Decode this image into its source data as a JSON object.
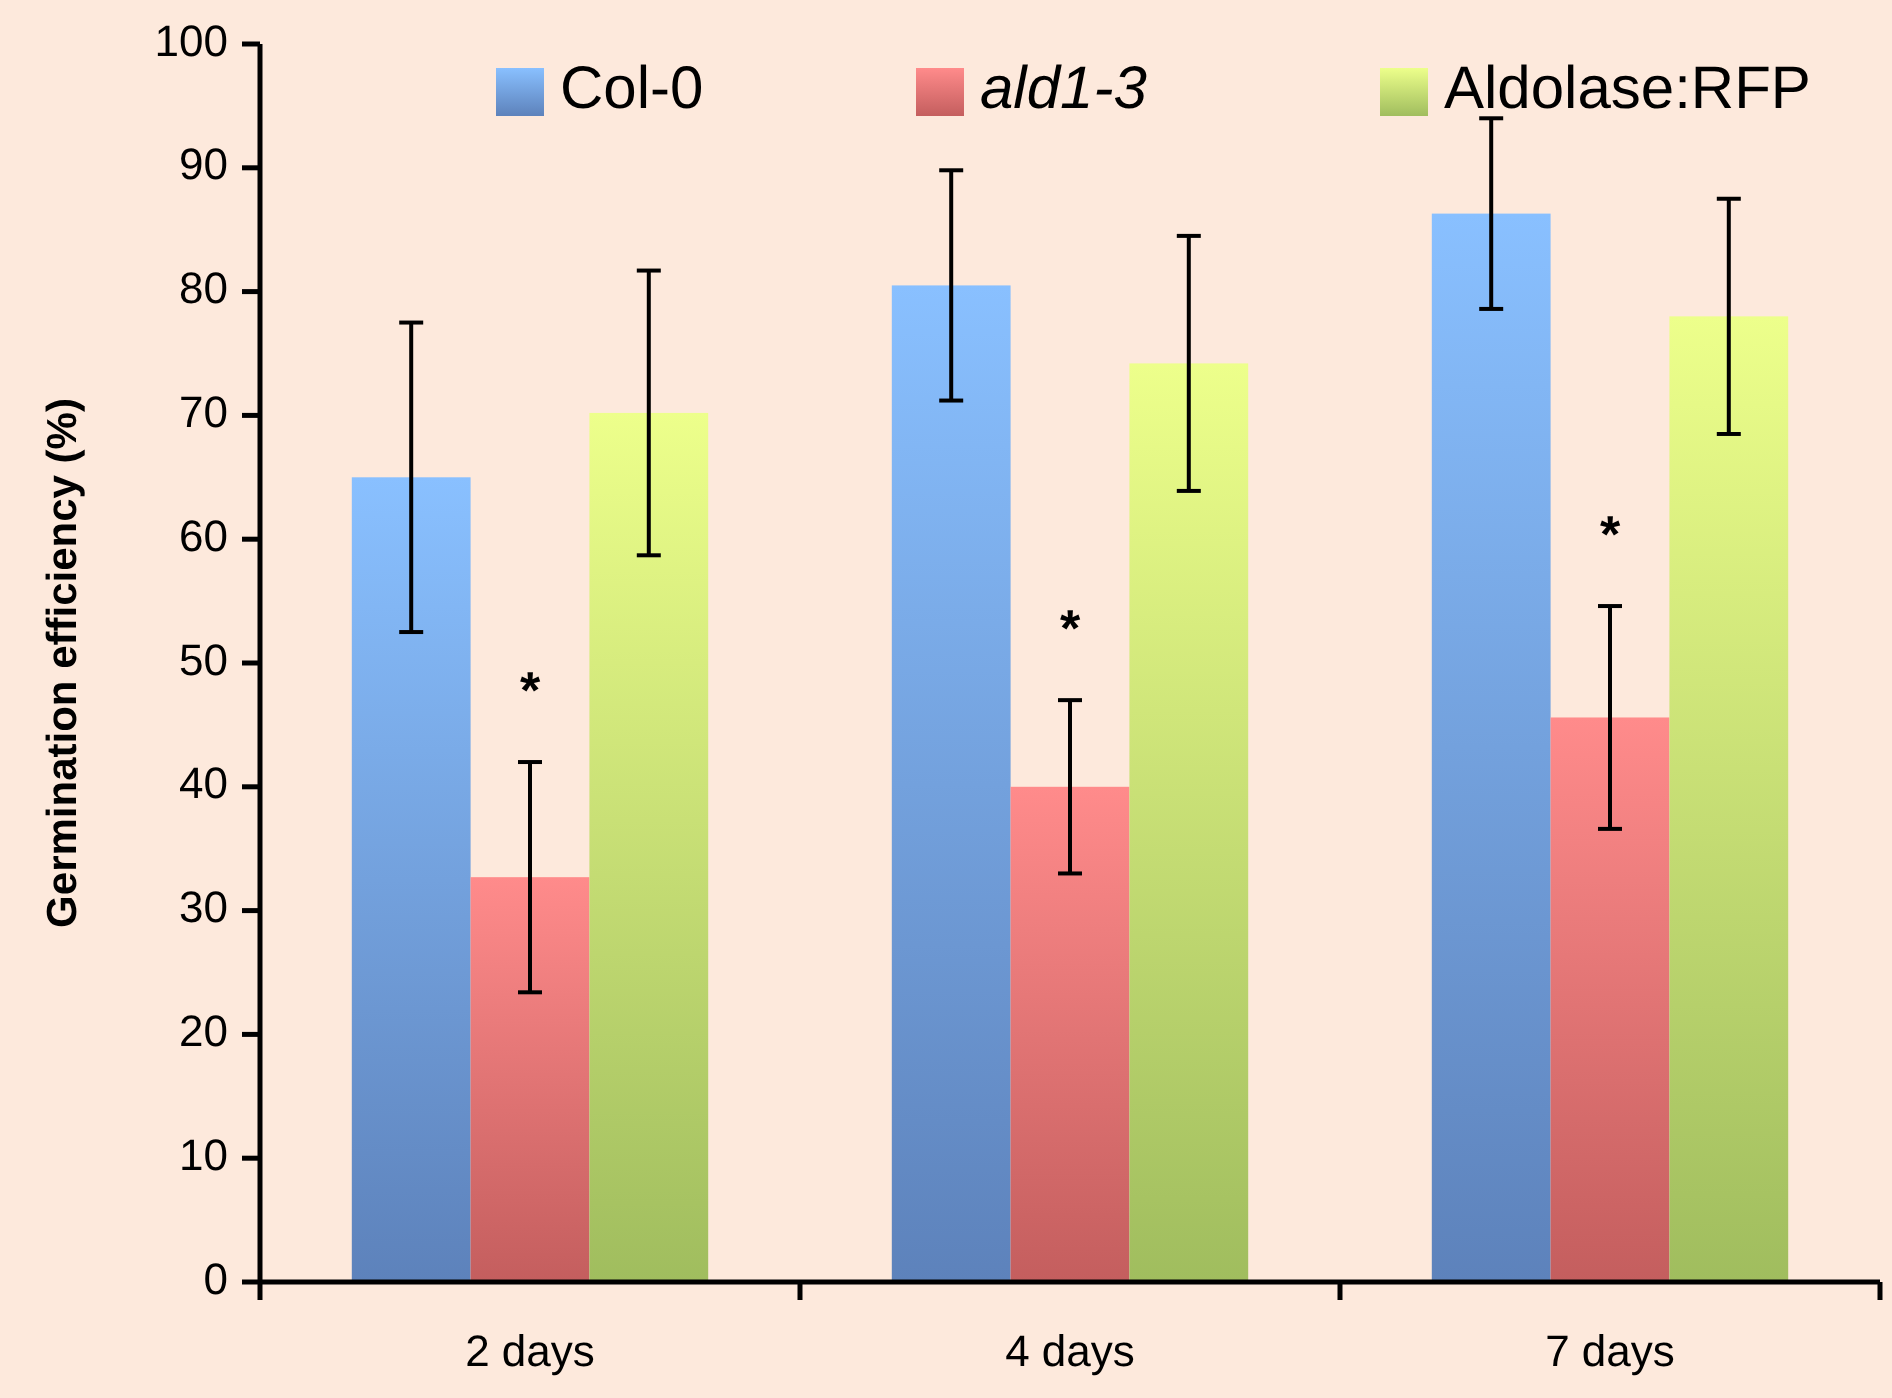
{
  "chart_data": {
    "type": "bar",
    "ylabel": "Germination efficiency (%)",
    "categories": [
      "2 days",
      "4 days",
      "7 days"
    ],
    "series": [
      {
        "name": "Col-0",
        "color": "#6f9be0",
        "values": [
          65.0,
          80.5,
          86.3
        ],
        "errors": [
          12.5,
          9.3,
          7.7
        ]
      },
      {
        "name": "ald1-3",
        "color": "#ea7070",
        "values": [
          32.7,
          40.0,
          45.6
        ],
        "errors": [
          9.3,
          7.0,
          9.0
        ]
      },
      {
        "name": "Aldolase:RFP",
        "color": "#bfe270",
        "values": [
          70.2,
          74.2,
          78.0
        ],
        "errors": [
          11.5,
          10.3,
          9.5
        ]
      }
    ],
    "annotations": [
      "*",
      "*",
      "*"
    ],
    "ylim": [
      0,
      100
    ],
    "yticks": [
      0,
      10,
      20,
      30,
      40,
      50,
      60,
      70,
      80,
      90,
      100
    ],
    "grid": false,
    "legend": "top"
  }
}
